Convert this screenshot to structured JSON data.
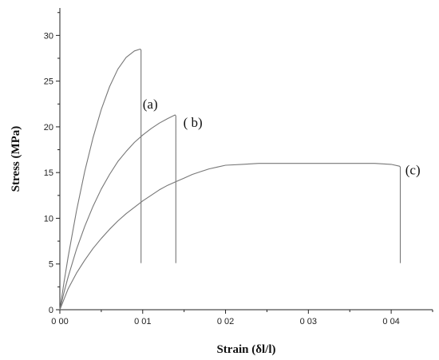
{
  "chart_data": {
    "type": "line",
    "xlabel": "Strain (δl/l)",
    "ylabel": "Stress (MPa)",
    "xlim": [
      0,
      0.045
    ],
    "ylim": [
      0,
      33
    ],
    "x_ticks": [
      0,
      0.01,
      0.02,
      0.03,
      0.04
    ],
    "x_tick_labels": [
      "0 00",
      "0 01",
      "0 02",
      "0 03",
      "0 04"
    ],
    "y_ticks": [
      0,
      5,
      10,
      15,
      20,
      25,
      30
    ],
    "y_tick_labels": [
      "0",
      "5",
      "10",
      "15",
      "20",
      "25",
      "30"
    ],
    "grid": false,
    "legend": "none",
    "line_color": "#777777",
    "series": [
      {
        "label": "(a)",
        "x": [
          0,
          0.0005,
          0.001,
          0.002,
          0.003,
          0.004,
          0.005,
          0.006,
          0.007,
          0.008,
          0.009,
          0.0097,
          0.0098,
          0.0098
        ],
        "y": [
          0,
          3.0,
          5.8,
          10.8,
          15.1,
          18.8,
          21.9,
          24.4,
          26.3,
          27.6,
          28.3,
          28.5,
          28.4,
          5.1
        ]
      },
      {
        "label": "( b)",
        "x": [
          0,
          0.0005,
          0.001,
          0.002,
          0.003,
          0.004,
          0.005,
          0.006,
          0.007,
          0.008,
          0.009,
          0.01,
          0.011,
          0.012,
          0.013,
          0.0139,
          0.014,
          0.014
        ],
        "y": [
          0,
          1.9,
          3.6,
          6.6,
          9.1,
          11.3,
          13.2,
          14.8,
          16.2,
          17.3,
          18.3,
          19.1,
          19.8,
          20.4,
          20.9,
          21.3,
          21.2,
          5.1
        ]
      },
      {
        "label": "(c)",
        "x": [
          0,
          0.001,
          0.002,
          0.003,
          0.004,
          0.005,
          0.006,
          0.007,
          0.008,
          0.009,
          0.01,
          0.011,
          0.012,
          0.013,
          0.014,
          0.015,
          0.016,
          0.017,
          0.018,
          0.019,
          0.02,
          0.022,
          0.024,
          0.026,
          0.028,
          0.03,
          0.032,
          0.034,
          0.036,
          0.038,
          0.04,
          0.041,
          0.0411,
          0.0411
        ],
        "y": [
          0,
          2.3,
          4.0,
          5.4,
          6.7,
          7.8,
          8.8,
          9.7,
          10.5,
          11.2,
          11.9,
          12.5,
          13.1,
          13.6,
          14.0,
          14.4,
          14.8,
          15.1,
          15.4,
          15.6,
          15.8,
          15.9,
          16.0,
          16.0,
          16.0,
          16.0,
          16.0,
          16.0,
          16.0,
          16.0,
          15.9,
          15.7,
          15.6,
          5.1
        ]
      }
    ],
    "curve_labels": [
      {
        "text": "(a)",
        "x": 0.01,
        "y": 22.0
      },
      {
        "text": "( b)",
        "x": 0.0149,
        "y": 20.0
      },
      {
        "text": "(c)",
        "x": 0.0417,
        "y": 14.8
      }
    ]
  }
}
